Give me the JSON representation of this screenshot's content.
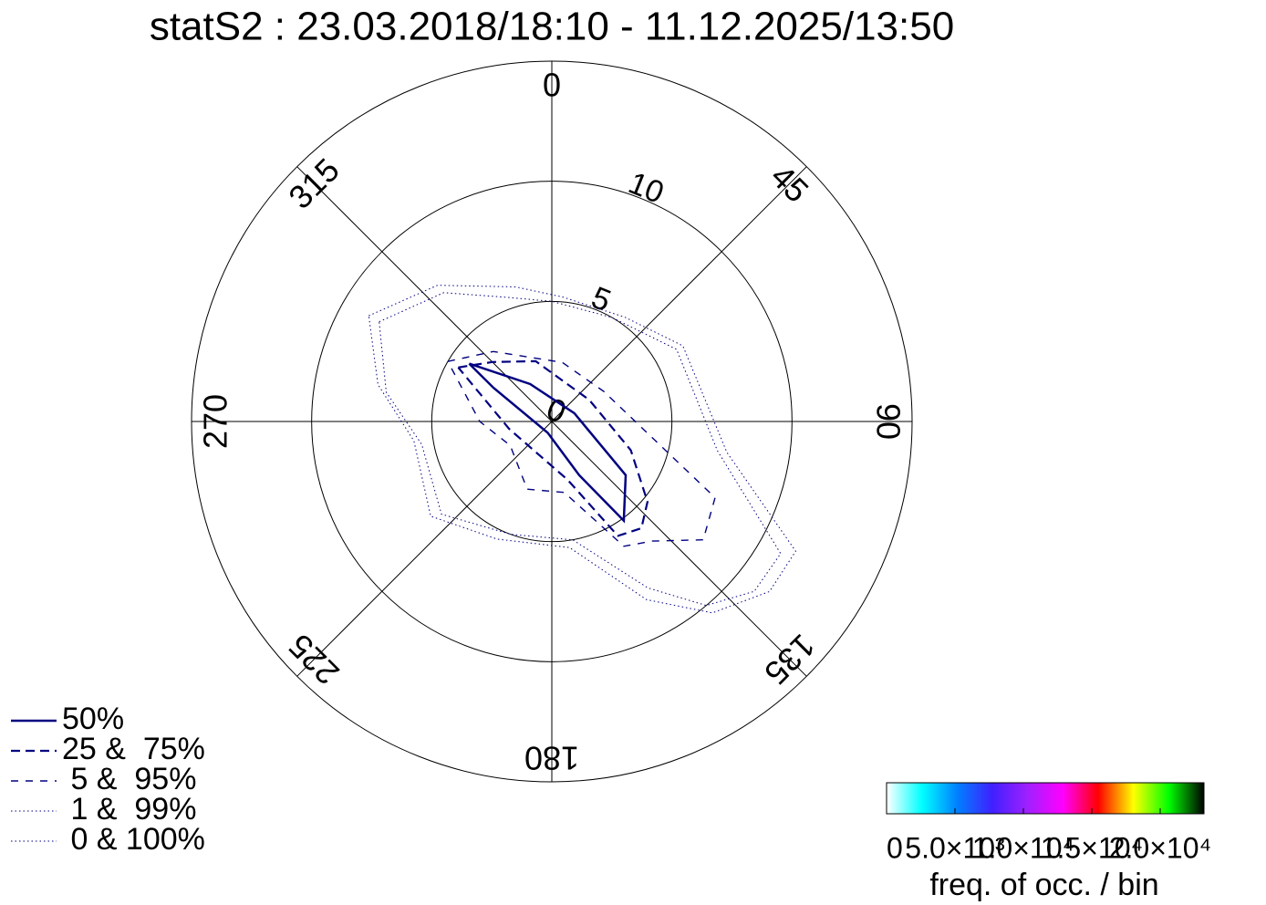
{
  "chart_data": {
    "type": "polar",
    "title": "statS2 : 23.03.2018/18:10 - 11.12.2025/13:50",
    "rlim": [
      0,
      15
    ],
    "rticks": [
      0,
      5,
      10
    ],
    "thetaticks": [
      0,
      45,
      90,
      135,
      180,
      225,
      270,
      315
    ],
    "series": [
      {
        "name": "50%",
        "color": "#000080",
        "dash": "solid",
        "theta": [
          305,
          330,
          70,
          126,
          144,
          153,
          200,
          300,
          305
        ],
        "r": [
          4.2,
          1.8,
          1.0,
          3.8,
          5.1,
          2.5,
          0.5,
          2.8,
          4.2
        ]
      },
      {
        "name": "25 &  75%",
        "color": "#000080",
        "dash": "dashed",
        "theta": [
          300,
          315,
          345,
          60,
          110,
          130,
          140,
          150,
          165,
          200,
          260,
          300
        ],
        "r": [
          4.5,
          3.5,
          2.6,
          1.8,
          3.5,
          5.2,
          5.8,
          5.5,
          2.5,
          1.5,
          1.8,
          4.5
        ]
      },
      {
        "name": " 5 &  95%",
        "color": "#000080",
        "dash": "dashed-thin",
        "theta": [
          300,
          320,
          10,
          60,
          115,
          128,
          140,
          150,
          170,
          200,
          240,
          270,
          300
        ],
        "r": [
          5.0,
          3.8,
          2.5,
          2.5,
          7.5,
          8.0,
          6.5,
          6.0,
          3.0,
          3.0,
          2.0,
          3.0,
          5.0
        ]
      },
      {
        "name": " 1 &  99%",
        "color": "#000080",
        "dash": "dotted",
        "theta": [
          300,
          320,
          340,
          0,
          30,
          60,
          100,
          120,
          130,
          140,
          150,
          170,
          200,
          230,
          260,
          280,
          300
        ],
        "r": [
          8.3,
          7.0,
          5.5,
          5.0,
          5.0,
          6.0,
          7.0,
          11.0,
          11.0,
          10.0,
          8.0,
          5.0,
          5.0,
          6.0,
          5.5,
          7.0,
          8.3
        ]
      },
      {
        "name": " 0 & 100%",
        "color": "#000080",
        "dash": "dotted",
        "theta": [
          300,
          320,
          345,
          5,
          35,
          60,
          100,
          118,
          128,
          140,
          152,
          172,
          205,
          232,
          262,
          282,
          300
        ],
        "r": [
          8.8,
          7.4,
          5.8,
          5.2,
          5.3,
          6.3,
          7.4,
          11.5,
          11.5,
          10.4,
          8.4,
          5.3,
          5.4,
          6.4,
          5.8,
          7.4,
          8.8
        ]
      }
    ],
    "colorbar": {
      "label": "freq. of occ. / bin",
      "clim": [
        0,
        23200
      ],
      "colors": [
        "#ffffff",
        "#00ffff",
        "#0080ff",
        "#4020ff",
        "#a020ff",
        "#ff00ff",
        "#ff0000",
        "#ffff00",
        "#00ff00",
        "#000000"
      ],
      "ticks": [
        0,
        {
          "value": 5000,
          "label": "5.0×10³"
        },
        {
          "value": 10000,
          "label": "1.0×10⁴"
        },
        {
          "value": 15000,
          "label": "1.5×10⁴"
        },
        {
          "value": 20000,
          "label": "2.0×10⁴"
        }
      ]
    }
  }
}
